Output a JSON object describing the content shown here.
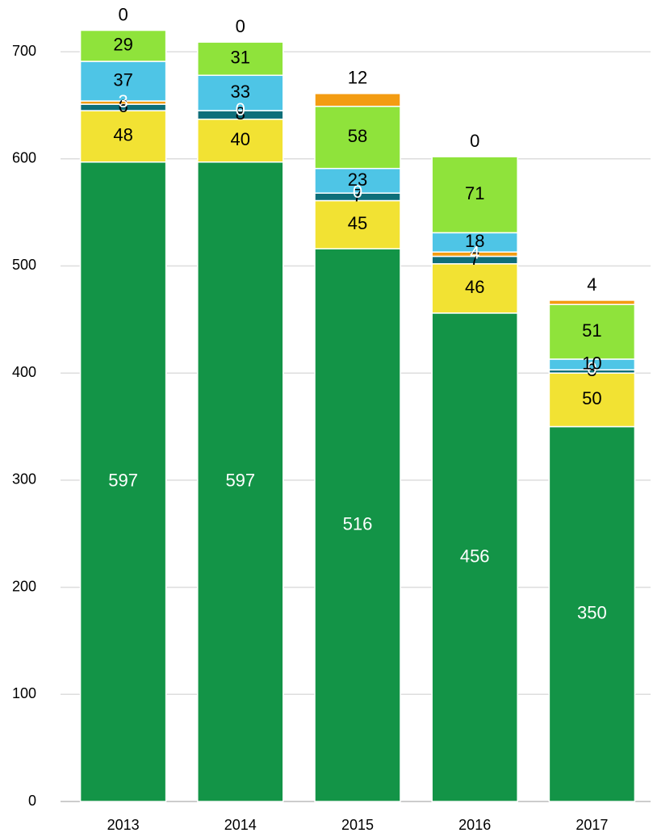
{
  "chart_data": {
    "type": "stacked_bar",
    "categories": [
      "2013",
      "2014",
      "2015",
      "2016",
      "2017"
    ],
    "series": [
      {
        "color": "#139447",
        "label_color": "#ffffff",
        "values": [
          597,
          597,
          516,
          456,
          350
        ]
      },
      {
        "color": "#f2e233",
        "label_color": "#000000",
        "values": [
          48,
          40,
          45,
          46,
          50
        ]
      },
      {
        "color": "#0e6f7a",
        "label_color": "#000000",
        "values": [
          6,
          8,
          7,
          7,
          3
        ]
      },
      {
        "color": "#f39c12",
        "label_color": "#ffffff",
        "values": [
          3,
          0,
          0,
          4,
          0
        ]
      },
      {
        "color": "#4ec5e6",
        "label_color": "#000000",
        "values": [
          37,
          33,
          23,
          18,
          10
        ]
      },
      {
        "color": "#8fe33b",
        "label_color": "#000000",
        "values": [
          29,
          31,
          58,
          71,
          51
        ]
      },
      {
        "color": "#f39c12",
        "label_color": "#000000",
        "values": [
          0,
          0,
          12,
          0,
          4
        ]
      }
    ],
    "ylim": [
      0,
      740
    ],
    "yticks": [
      0,
      100,
      200,
      300,
      400,
      500,
      600,
      700
    ],
    "grid": true
  }
}
